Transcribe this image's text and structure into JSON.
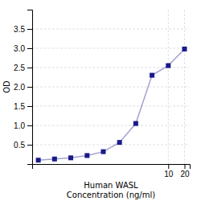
{
  "chart_data": {
    "type": "line",
    "x": [
      0.039,
      0.078,
      0.156,
      0.313,
      0.625,
      1.25,
      2.5,
      5,
      10,
      20
    ],
    "values": [
      0.1,
      0.13,
      0.16,
      0.22,
      0.32,
      0.56,
      1.05,
      2.3,
      2.55,
      2.98
    ],
    "xlabel": [
      "Human WASL",
      "Concentration (ng/ml)"
    ],
    "ylabel": "OD",
    "log": "x",
    "xlim": [
      0.03,
      25
    ],
    "xticks": [
      10,
      20
    ],
    "ylim": [
      0,
      4.0
    ],
    "yticks": [
      0.5,
      {
        "value": 1.0,
        "label": "1.0"
      },
      1.5,
      {
        "value": 2.0,
        "label": "2.0"
      },
      2.5,
      {
        "value": 3.0,
        "label": "3.0"
      },
      3.5
    ],
    "grid": true,
    "color": "#1a1a8c",
    "marker": "square"
  }
}
